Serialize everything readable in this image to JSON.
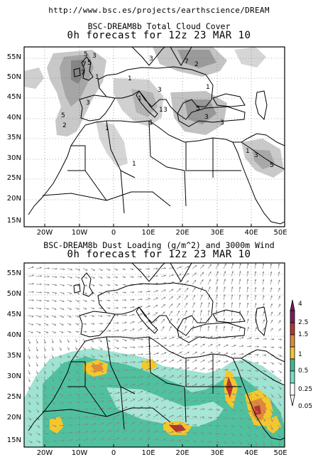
{
  "header": {
    "url": "http://www.bsc.es/projects/earthscience/DREAM"
  },
  "top_map": {
    "title": "BSC-DREAM8b Total Cloud Cover",
    "subtitle": "0h forecast for 12z 23 MAR 10",
    "lat_labels": [
      "55N",
      "50N",
      "45N",
      "40N",
      "35N",
      "30N",
      "25N",
      "20N",
      "15N"
    ],
    "lon_labels": [
      "20W",
      "10W",
      "0",
      "10E",
      "20E",
      "30E",
      "40E",
      "50E"
    ],
    "contour_labels": [
      "5",
      "7",
      "3",
      "5",
      "7",
      "1",
      "5",
      "2",
      "3",
      "1",
      "1",
      "3",
      "3",
      "1",
      "1",
      "5",
      "3",
      "7",
      "3",
      "2",
      "1",
      "1",
      "5",
      "3",
      "1",
      "1",
      "3"
    ]
  },
  "bottom_map": {
    "title": "BSC-DREAM8b Dust Loading (g/m^2) and 3000m Wind",
    "subtitle": "0h forecast for 12z 23 MAR 10",
    "lat_labels": [
      "55N",
      "50N",
      "45N",
      "40N",
      "35N",
      "30N",
      "25N",
      "20N",
      "15N"
    ],
    "lon_labels": [
      "20W",
      "10W",
      "0",
      "10E",
      "20E",
      "30E",
      "40E",
      "50E"
    ]
  },
  "colorbar": {
    "labels": [
      "4",
      "2.5",
      "1.5",
      "1",
      "0.5",
      "0.25",
      "0.05"
    ],
    "colors": [
      "#7a1e5c",
      "#b5362d",
      "#e2883a",
      "#f5c72c",
      "#3fb998",
      "#78dec8",
      "#ffffff"
    ]
  }
}
